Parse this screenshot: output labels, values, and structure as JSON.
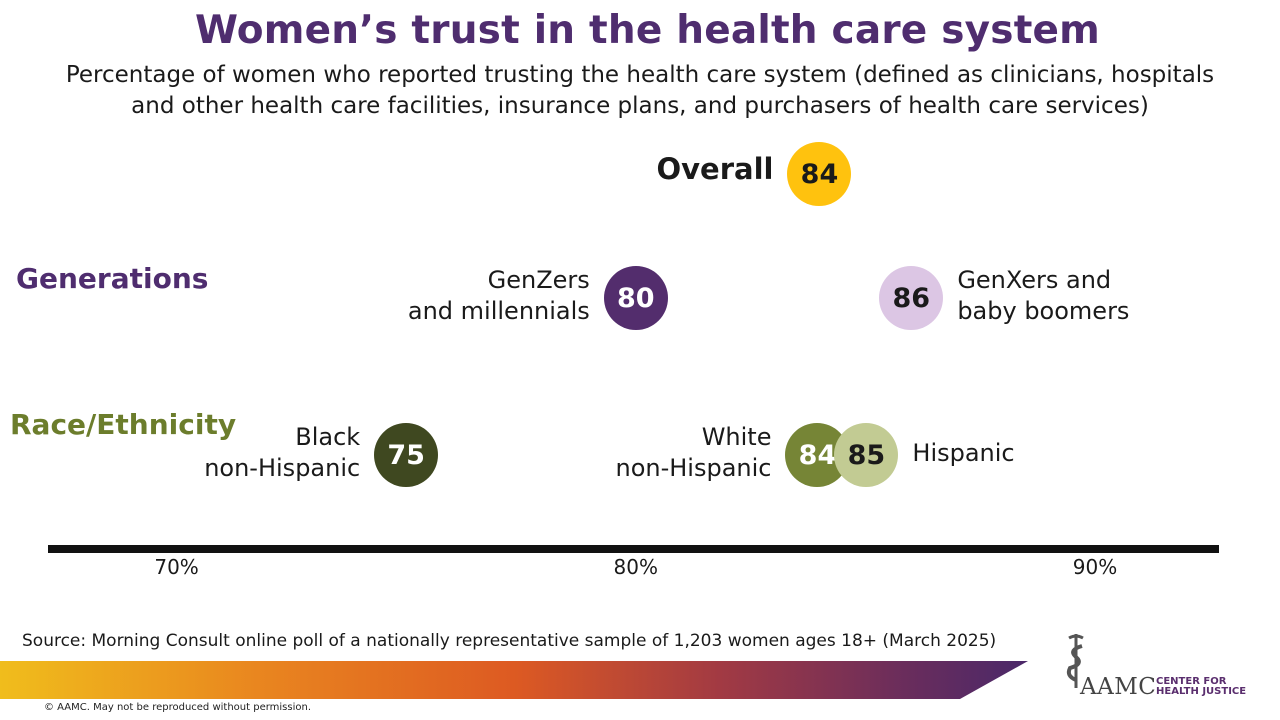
{
  "title": "Women’s trust in the health care system",
  "subtitle_lines": [
    "Percentage of women who reported trusting the health care system (defined as clinicians, hospitals",
    "and other health care facilities, insurance plans, and purchasers of health care services)"
  ],
  "source": "Source: Morning Consult online poll of a nationally representative sample of 1,203 women ages 18+ (March 2025)",
  "copyright": "© AAMC. May not be reproduced without permission.",
  "logo": {
    "name": "AAMC",
    "sub_lines": [
      "CENTER FOR",
      "HEALTH JUSTICE"
    ]
  },
  "colors": {
    "overall": "#ffc20e",
    "genz_millennials": "#532d6d",
    "genx_boomers": "#dcc6e4",
    "black": "#3f4820",
    "white": "#768536",
    "hispanic": "#c2cb93",
    "title": "#4f2d6f",
    "race_heading": "#6c7d2c"
  },
  "chart_data": {
    "type": "scatter",
    "title": "Women’s trust in the health care system",
    "xlabel": "",
    "ylabel": "",
    "xlim": [
      67.2,
      92.7
    ],
    "x_ticks": [
      {
        "value": 70,
        "label": "70%"
      },
      {
        "value": 80,
        "label": "80%"
      },
      {
        "value": 90,
        "label": "90%"
      }
    ],
    "groups": [
      {
        "id": "overall",
        "label": "",
        "points": [
          {
            "id": "overall",
            "label_lines": [
              "Overall"
            ],
            "value": 84,
            "value_label": "84",
            "side": "left",
            "color_key": "overall",
            "text_color": "#1a1a1a"
          }
        ]
      },
      {
        "id": "generations",
        "label": "Generations",
        "points": [
          {
            "id": "genz",
            "label_lines": [
              "GenZers",
              "and millennials"
            ],
            "value": 80,
            "value_label": "80",
            "side": "left",
            "color_key": "genz_millennials",
            "text_color": "#ffffff"
          },
          {
            "id": "genx",
            "label_lines": [
              "GenXers and",
              "baby boomers"
            ],
            "value": 86,
            "value_label": "86",
            "side": "right",
            "color_key": "genx_boomers",
            "text_color": "#1a1a1a"
          }
        ]
      },
      {
        "id": "race",
        "label": "Race/Ethnicity",
        "points": [
          {
            "id": "black",
            "label_lines": [
              "Black",
              "non-Hispanic"
            ],
            "value": 75,
            "value_label": "75",
            "side": "left",
            "color_key": "black",
            "text_color": "#ffffff"
          },
          {
            "id": "white",
            "label_lines": [
              "White",
              "non-Hispanic"
            ],
            "value": 84,
            "value_label": "84",
            "side": "left",
            "color_key": "white",
            "text_color": "#ffffff"
          },
          {
            "id": "hispanic",
            "label_lines": [
              "Hispanic"
            ],
            "value": 85,
            "value_label": "85",
            "side": "right",
            "color_key": "hispanic",
            "text_color": "#1a1a1a"
          }
        ]
      }
    ]
  }
}
